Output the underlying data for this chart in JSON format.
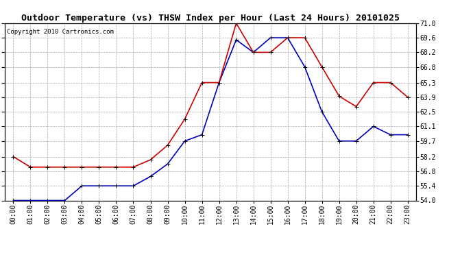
{
  "title": "Outdoor Temperature (vs) THSW Index per Hour (Last 24 Hours) 20101025",
  "copyright": "Copyright 2010 Cartronics.com",
  "hours": [
    "00:00",
    "01:00",
    "02:00",
    "03:00",
    "04:00",
    "05:00",
    "06:00",
    "07:00",
    "08:00",
    "09:00",
    "10:00",
    "11:00",
    "12:00",
    "13:00",
    "14:00",
    "15:00",
    "16:00",
    "17:00",
    "18:00",
    "19:00",
    "20:00",
    "21:00",
    "22:00",
    "23:00"
  ],
  "temp": [
    54.0,
    54.0,
    54.0,
    54.0,
    55.4,
    55.4,
    55.4,
    55.4,
    56.3,
    57.5,
    59.7,
    60.3,
    65.3,
    69.4,
    68.2,
    69.6,
    69.6,
    66.8,
    62.5,
    59.7,
    59.7,
    61.1,
    60.3,
    60.3
  ],
  "thsw": [
    58.2,
    57.2,
    57.2,
    57.2,
    57.2,
    57.2,
    57.2,
    57.2,
    57.9,
    59.3,
    61.8,
    65.3,
    65.3,
    71.0,
    68.2,
    68.2,
    69.6,
    69.6,
    66.8,
    64.0,
    63.0,
    65.3,
    65.3,
    63.9
  ],
  "temp_color": "#0000bb",
  "thsw_color": "#cc0000",
  "background_color": "#ffffff",
  "grid_color": "#aaaaaa",
  "ylim_min": 54.0,
  "ylim_max": 71.0,
  "yticks": [
    54.0,
    55.4,
    56.8,
    58.2,
    59.7,
    61.1,
    62.5,
    63.9,
    65.3,
    66.8,
    68.2,
    69.6,
    71.0
  ],
  "title_fontsize": 9.5,
  "copyright_fontsize": 6.5,
  "tick_fontsize": 7.0,
  "marker": "+",
  "markersize": 4,
  "linewidth": 1.2
}
